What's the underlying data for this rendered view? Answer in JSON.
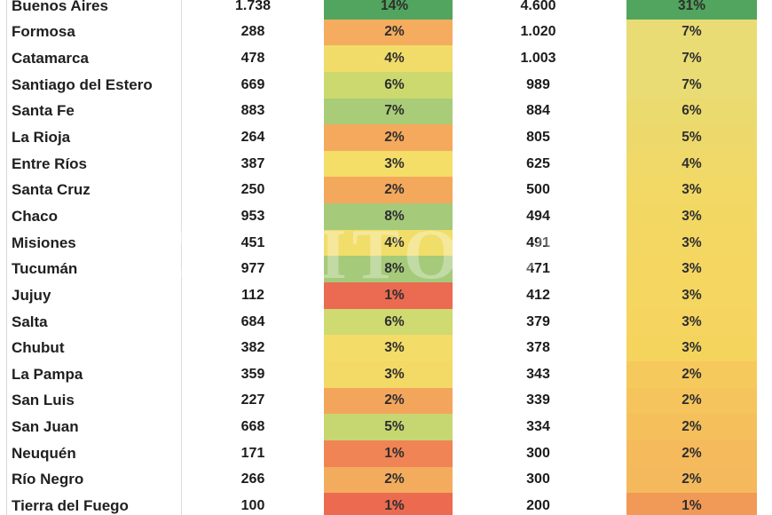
{
  "watermark": {
    "text": "EL LITORAL"
  },
  "colors": {
    "green_max": "#52A55E",
    "red_min": "#EB6A52",
    "column_divider": "#d6d6d6",
    "background": "#ffffff"
  },
  "chart_data": {
    "type": "table",
    "title": "",
    "legend_position": "none",
    "grid": "off",
    "rows": [
      {
        "province": "Buenos Aires",
        "value1": "1.738",
        "pct1": "14%",
        "pct1_color": "#52A55E",
        "value2": "4.600",
        "pct2": "31%",
        "pct2_color": "#52A55E"
      },
      {
        "province": "Formosa",
        "value1": "288",
        "pct1": "2%",
        "pct1_color": "#F5AC5E",
        "value2": "1.020",
        "pct2": "7%",
        "pct2_color": "#E9DC74"
      },
      {
        "province": "Catamarca",
        "value1": "478",
        "pct1": "4%",
        "pct1_color": "#F1DC69",
        "value2": "1.003",
        "pct2": "7%",
        "pct2_color": "#E9DC74"
      },
      {
        "province": "Santiago del Estero",
        "value1": "669",
        "pct1": "6%",
        "pct1_color": "#CBD96F",
        "value2": "989",
        "pct2": "7%",
        "pct2_color": "#E9DC74"
      },
      {
        "province": "Santa Fe",
        "value1": "883",
        "pct1": "7%",
        "pct1_color": "#A9CC78",
        "value2": "884",
        "pct2": "6%",
        "pct2_color": "#EBDA6E"
      },
      {
        "province": "La Rioja",
        "value1": "264",
        "pct1": "2%",
        "pct1_color": "#F5A95C",
        "value2": "805",
        "pct2": "5%",
        "pct2_color": "#EDD96B"
      },
      {
        "province": "Entre Ríos",
        "value1": "387",
        "pct1": "3%",
        "pct1_color": "#F4DE68",
        "value2": "625",
        "pct2": "4%",
        "pct2_color": "#F0D968"
      },
      {
        "province": "Santa Cruz",
        "value1": "250",
        "pct1": "2%",
        "pct1_color": "#F4A85C",
        "value2": "500",
        "pct2": "3%",
        "pct2_color": "#F2D864"
      },
      {
        "province": "Chaco",
        "value1": "953",
        "pct1": "8%",
        "pct1_color": "#A5CA7A",
        "value2": "494",
        "pct2": "3%",
        "pct2_color": "#F2D863"
      },
      {
        "province": "Misiones",
        "value1": "451",
        "pct1": "4%",
        "pct1_color": "#F1DD69",
        "value2": "491",
        "pct2": "3%",
        "pct2_color": "#F3D762"
      },
      {
        "province": "Tucumán",
        "value1": "977",
        "pct1": "8%",
        "pct1_color": "#A5CA7A",
        "value2": "471",
        "pct2": "3%",
        "pct2_color": "#F4D661"
      },
      {
        "province": "Jujuy",
        "value1": "112",
        "pct1": "1%",
        "pct1_color": "#EB6A52",
        "value2": "412",
        "pct2": "3%",
        "pct2_color": "#F4D660"
      },
      {
        "province": "Salta",
        "value1": "684",
        "pct1": "6%",
        "pct1_color": "#CFDA70",
        "value2": "379",
        "pct2": "3%",
        "pct2_color": "#F5D55F"
      },
      {
        "province": "Chubut",
        "value1": "382",
        "pct1": "3%",
        "pct1_color": "#F3DC67",
        "value2": "378",
        "pct2": "3%",
        "pct2_color": "#F5D45E"
      },
      {
        "province": "La Pampa",
        "value1": "359",
        "pct1": "3%",
        "pct1_color": "#F3D966",
        "value2": "343",
        "pct2": "2%",
        "pct2_color": "#F6C95D"
      },
      {
        "province": "San Luis",
        "value1": "227",
        "pct1": "2%",
        "pct1_color": "#F3A55C",
        "value2": "339",
        "pct2": "2%",
        "pct2_color": "#F5C45C"
      },
      {
        "province": "San Juan",
        "value1": "668",
        "pct1": "5%",
        "pct1_color": "#C6D671",
        "value2": "334",
        "pct2": "2%",
        "pct2_color": "#F5C05C"
      },
      {
        "province": "Neuquén",
        "value1": "171",
        "pct1": "1%",
        "pct1_color": "#F08455",
        "value2": "300",
        "pct2": "2%",
        "pct2_color": "#F4BA5C"
      },
      {
        "province": "Río Negro",
        "value1": "266",
        "pct1": "2%",
        "pct1_color": "#F3AC5E",
        "value2": "300",
        "pct2": "2%",
        "pct2_color": "#F4B95C"
      },
      {
        "province": "Tierra del Fuego",
        "value1": "100",
        "pct1": "1%",
        "pct1_color": "#EC6B50",
        "value2": "200",
        "pct2": "1%",
        "pct2_color": "#F19A57"
      }
    ]
  }
}
